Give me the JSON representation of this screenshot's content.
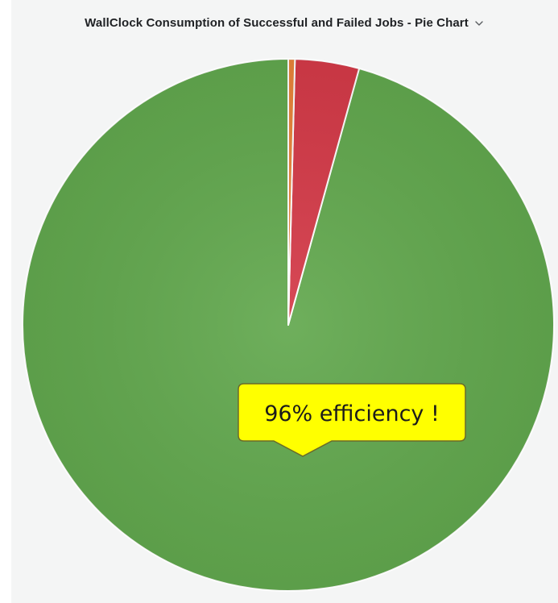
{
  "panel": {
    "title": "WallClock Consumption of Successful and Failed Jobs - Pie Chart"
  },
  "chart_data": {
    "type": "pie",
    "title": "WallClock Consumption of Successful and Failed Jobs - Pie Chart",
    "slices": [
      {
        "value": 95.7,
        "color": "#62a84e"
      },
      {
        "value": 3.9,
        "color": "#d43a48"
      },
      {
        "value": 0.4,
        "color": "#e8833a"
      }
    ],
    "start_angle_deg": 0,
    "direction": "counterclockwise",
    "annotation": {
      "text": "96% efficiency !",
      "background": "#ffff00",
      "border": "#6b6b2a"
    }
  }
}
